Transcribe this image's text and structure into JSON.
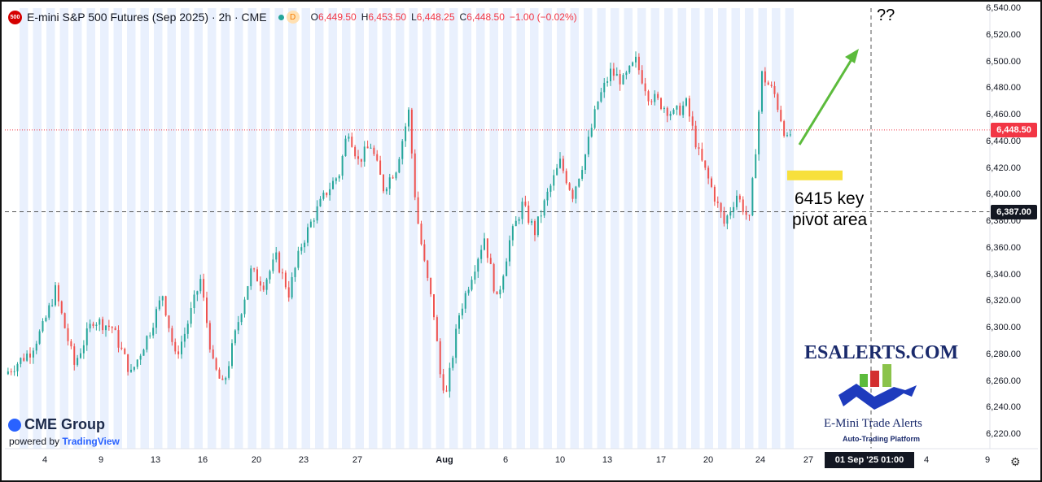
{
  "header": {
    "symbol_badge": "500",
    "title": "E-mini S&P 500 Futures (Sep 2025) · 2h · CME",
    "status_d": "D",
    "ohlc": [
      {
        "label": "O",
        "value": "6,449.50"
      },
      {
        "label": "H",
        "value": "6,453.50"
      },
      {
        "label": "L",
        "value": "6,448.25"
      },
      {
        "label": "C",
        "value": "6,448.50"
      },
      {
        "label": "",
        "value": "−1.00 (−0.02%)"
      }
    ]
  },
  "branding": {
    "cme": "CME Group",
    "powered_prefix": "powered by",
    "powered_brand": "TradingView",
    "es_title": "ESALERTS.COM",
    "es_subtitle": "E-Mini Trade Alerts",
    "es_tagline": "Auto-Trading Platform"
  },
  "annotations": {
    "question": "??",
    "pivot_line1": "6415 key",
    "pivot_line2": "pivot area"
  },
  "axis": {
    "time_tag": "01 Sep '25   01:00"
  },
  "colors": {
    "up": "#26a69a",
    "down": "#ef5350",
    "session_band": "#e9f0fd",
    "last_price": "#f23645",
    "pivot_highlight": "#f7e03c",
    "arrow": "#5cbb3c"
  },
  "chart_data": {
    "type": "candlestick",
    "title": "E-mini S&P 500 Futures (Sep 2025) · 2h · CME",
    "xlabel": "",
    "ylabel": "",
    "ylim": [
      6210,
      6545
    ],
    "y_ticks": [
      "6,540.00",
      "6,520.00",
      "6,500.00",
      "6,480.00",
      "6,460.00",
      "6,440.00",
      "6,420.00",
      "6,400.00",
      "6,380.00",
      "6,360.00",
      "6,340.00",
      "6,320.00",
      "6,300.00",
      "6,280.00",
      "6,260.00",
      "6,240.00",
      "6,220.00"
    ],
    "x_ticks": [
      "4",
      "9",
      "13",
      "16",
      "20",
      "23",
      "27",
      "Aug",
      "6",
      "10",
      "13",
      "17",
      "20",
      "24",
      "27",
      "4",
      "9"
    ],
    "last_price": 6448.5,
    "last_price_label": "6,448.50",
    "crosshair_price": 6387.0,
    "crosshair_price_label": "6,387.00",
    "close_path": [
      {
        "t": 0.0,
        "v": 6265
      },
      {
        "t": 2.0,
        "v": 6282
      },
      {
        "t": 3.0,
        "v": 6300
      },
      {
        "t": 4.0,
        "v": 6328
      },
      {
        "t": 5.5,
        "v": 6272
      },
      {
        "t": 7.0,
        "v": 6306
      },
      {
        "t": 8.5,
        "v": 6300
      },
      {
        "t": 10.0,
        "v": 6265
      },
      {
        "t": 11.5,
        "v": 6298
      },
      {
        "t": 12.5,
        "v": 6325
      },
      {
        "t": 13.5,
        "v": 6278
      },
      {
        "t": 14.2,
        "v": 6294
      },
      {
        "t": 15.5,
        "v": 6336
      },
      {
        "t": 16.5,
        "v": 6272
      },
      {
        "t": 17.3,
        "v": 6255
      },
      {
        "t": 18.5,
        "v": 6305
      },
      {
        "t": 19.5,
        "v": 6342
      },
      {
        "t": 20.5,
        "v": 6333
      },
      {
        "t": 21.5,
        "v": 6352
      },
      {
        "t": 22.5,
        "v": 6326
      },
      {
        "t": 23.5,
        "v": 6362
      },
      {
        "t": 24.5,
        "v": 6384
      },
      {
        "t": 25.5,
        "v": 6402
      },
      {
        "t": 26.5,
        "v": 6416
      },
      {
        "t": 27.2,
        "v": 6450
      },
      {
        "t": 28.0,
        "v": 6425
      },
      {
        "t": 29.0,
        "v": 6437
      },
      {
        "t": 30.0,
        "v": 6405
      },
      {
        "t": 31.0,
        "v": 6420
      },
      {
        "t": 32.0,
        "v": 6462
      },
      {
        "t": 32.6,
        "v": 6388
      },
      {
        "t": 33.2,
        "v": 6350
      },
      {
        "t": 34.0,
        "v": 6310
      },
      {
        "t": 34.5,
        "v": 6265
      },
      {
        "t": 35.0,
        "v": 6250
      },
      {
        "t": 36.0,
        "v": 6310
      },
      {
        "t": 37.0,
        "v": 6340
      },
      {
        "t": 38.0,
        "v": 6368
      },
      {
        "t": 39.0,
        "v": 6320
      },
      {
        "t": 40.0,
        "v": 6365
      },
      {
        "t": 41.0,
        "v": 6392
      },
      {
        "t": 42.0,
        "v": 6372
      },
      {
        "t": 43.0,
        "v": 6400
      },
      {
        "t": 44.0,
        "v": 6424
      },
      {
        "t": 45.0,
        "v": 6400
      },
      {
        "t": 46.0,
        "v": 6430
      },
      {
        "t": 47.0,
        "v": 6470
      },
      {
        "t": 48.0,
        "v": 6492
      },
      {
        "t": 49.0,
        "v": 6485
      },
      {
        "t": 50.0,
        "v": 6500
      },
      {
        "t": 51.0,
        "v": 6475
      },
      {
        "t": 52.0,
        "v": 6468
      },
      {
        "t": 53.0,
        "v": 6460
      },
      {
        "t": 54.0,
        "v": 6468
      },
      {
        "t": 55.0,
        "v": 6430
      },
      {
        "t": 56.0,
        "v": 6405
      },
      {
        "t": 57.0,
        "v": 6378
      },
      {
        "t": 58.0,
        "v": 6400
      },
      {
        "t": 59.0,
        "v": 6380
      },
      {
        "t": 60.0,
        "v": 6490
      },
      {
        "t": 61.0,
        "v": 6475
      },
      {
        "t": 62.0,
        "v": 6440
      },
      {
        "t": 62.4,
        "v": 6448.5
      }
    ]
  }
}
